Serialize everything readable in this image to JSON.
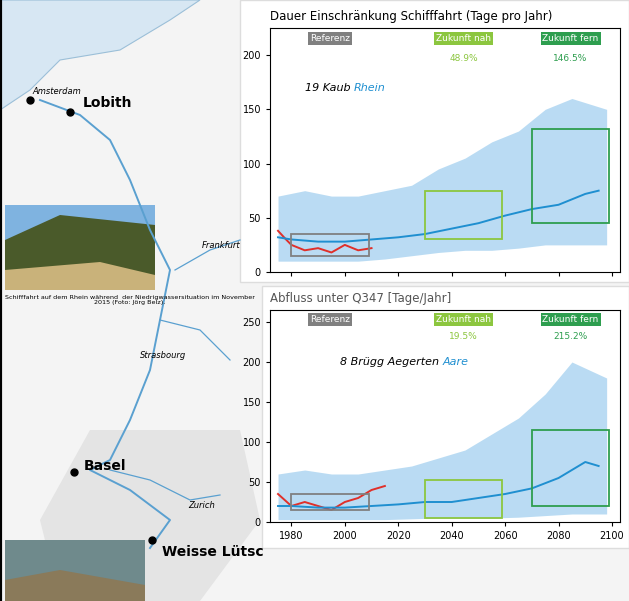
{
  "chart_data": [
    {
      "type": "line",
      "title": "Dauer Einschränkung Schifffahrt (Tage pro Jahr)",
      "station": {
        "number": "19",
        "name": "Kaub",
        "river": "Rhein"
      },
      "xlim": [
        1972,
        2103
      ],
      "xticks": [
        1980,
        2000,
        2020,
        2040,
        2060,
        2080,
        2100
      ],
      "ylim": [
        0,
        225
      ],
      "yticks": [
        0,
        50,
        100,
        150,
        200
      ],
      "tick_labels": "y",
      "grid": false,
      "band": {
        "color": "#a9d3f0",
        "x": [
          1975,
          1985,
          1995,
          2005,
          2015,
          2025,
          2035,
          2045,
          2055,
          2065,
          2075,
          2085,
          2098
        ],
        "lower": [
          10,
          10,
          10,
          10,
          12,
          15,
          18,
          20,
          20,
          22,
          25,
          25,
          25
        ],
        "upper": [
          70,
          75,
          70,
          70,
          75,
          80,
          95,
          105,
          120,
          130,
          150,
          160,
          150
        ]
      },
      "series": [
        {
          "color": "#e0302a",
          "x": [
            1975,
            1978,
            1980,
            1985,
            1990,
            1995,
            2000,
            2005,
            2010
          ],
          "values": [
            38,
            30,
            25,
            20,
            22,
            18,
            25,
            20,
            22
          ]
        },
        {
          "color": "#1f8fd0",
          "x": [
            1975,
            1980,
            1990,
            2000,
            2010,
            2020,
            2030,
            2040,
            2050,
            2060,
            2070,
            2080,
            2090,
            2095
          ],
          "values": [
            32,
            30,
            28,
            28,
            30,
            32,
            35,
            40,
            45,
            52,
            58,
            62,
            72,
            75
          ]
        }
      ],
      "boxes": [
        {
          "label": "Referenz",
          "x": [
            1980,
            2009
          ],
          "y": [
            15,
            35
          ],
          "color": "#808080"
        },
        {
          "label": "Zukunft nah",
          "change": "48.9%",
          "x": [
            2030,
            2059
          ],
          "y": [
            30,
            75
          ],
          "color": "#8cc63f"
        },
        {
          "label": "Zukunft fern",
          "change": "146.5%",
          "x": [
            2070,
            2099
          ],
          "y": [
            45,
            132
          ],
          "color": "#2e9e4f"
        }
      ]
    },
    {
      "type": "line",
      "title": "Abfluss unter Q347 [Tage/Jahr]",
      "station": {
        "number": "8",
        "name": "Brügg Aegerten",
        "river": "Aare"
      },
      "xlim": [
        1972,
        2103
      ],
      "xticks": [
        1980,
        2000,
        2020,
        2040,
        2060,
        2080,
        2100
      ],
      "ylim": [
        0,
        265
      ],
      "yticks": [
        0,
        50,
        100,
        150,
        200,
        250
      ],
      "grid": false,
      "band": {
        "color": "#a9d3f0",
        "x": [
          1975,
          1985,
          1995,
          2005,
          2015,
          2025,
          2035,
          2045,
          2055,
          2065,
          2075,
          2085,
          2098
        ],
        "lower": [
          3,
          3,
          3,
          3,
          3,
          4,
          5,
          5,
          5,
          6,
          8,
          10,
          10
        ],
        "upper": [
          60,
          65,
          60,
          60,
          65,
          70,
          80,
          90,
          110,
          130,
          160,
          200,
          180
        ]
      },
      "series": [
        {
          "color": "#e0302a",
          "x": [
            1975,
            1980,
            1985,
            1990,
            1995,
            2000,
            2005,
            2010,
            2015
          ],
          "values": [
            35,
            20,
            25,
            20,
            15,
            25,
            30,
            40,
            45
          ]
        },
        {
          "color": "#1f8fd0",
          "x": [
            1975,
            1980,
            1990,
            2000,
            2010,
            2020,
            2030,
            2040,
            2050,
            2060,
            2070,
            2080,
            2090,
            2095
          ],
          "values": [
            20,
            20,
            18,
            18,
            20,
            22,
            25,
            25,
            30,
            35,
            42,
            55,
            75,
            70
          ]
        }
      ],
      "boxes": [
        {
          "label": "Referenz",
          "x": [
            1980,
            2009
          ],
          "y": [
            15,
            35
          ],
          "color": "#808080"
        },
        {
          "label": "Zukunft nah",
          "change": "19.5%",
          "x": [
            2030,
            2059
          ],
          "y": [
            5,
            52
          ],
          "color": "#8cc63f"
        },
        {
          "label": "Zukunft fern",
          "change": "215.2%",
          "x": [
            2070,
            2099
          ],
          "y": [
            20,
            115
          ],
          "color": "#2e9e4f"
        }
      ]
    }
  ],
  "map": {
    "places": [
      {
        "name": "Amsterdam",
        "bold": false
      },
      {
        "name": "Lobith",
        "bold": true
      },
      {
        "name": "Frankfurt",
        "bold": false
      },
      {
        "name": "Strasbourg",
        "bold": false
      },
      {
        "name": "Basel",
        "bold": true
      },
      {
        "name": "Zurich",
        "bold": false
      },
      {
        "name": "Weisse Lütsc",
        "bold": true
      }
    ]
  },
  "caption": "Schifffahrt auf dem Rhein während  der Niedrigwassersituation im November 2015 (Foto: Jörg Belz)."
}
